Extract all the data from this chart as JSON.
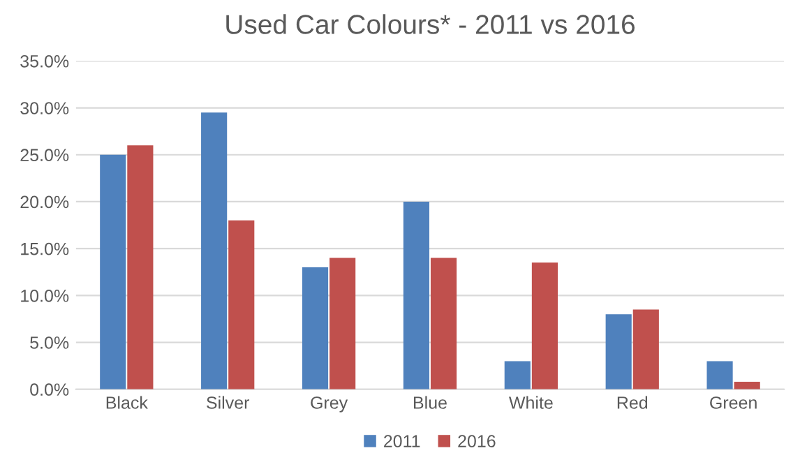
{
  "chart_data": {
    "type": "bar",
    "title": "Used Car Colours* - 2011 vs 2016",
    "categories": [
      "Black",
      "Silver",
      "Grey",
      "Blue",
      "White",
      "Red",
      "Green"
    ],
    "series": [
      {
        "name": "2011",
        "color": "#4f81bd",
        "values": [
          25,
          29.5,
          13,
          20,
          3,
          8,
          3
        ]
      },
      {
        "name": "2016",
        "color": "#c0504d",
        "values": [
          26,
          18,
          14,
          14,
          13.5,
          8.5,
          0.8
        ]
      }
    ],
    "ylim": [
      0,
      35
    ],
    "yticks": [
      {
        "value": 0,
        "label": "0.0%"
      },
      {
        "value": 5,
        "label": "5.0%"
      },
      {
        "value": 10,
        "label": "10.0%"
      },
      {
        "value": 15,
        "label": "15.0%"
      },
      {
        "value": 20,
        "label": "20.0%"
      },
      {
        "value": 25,
        "label": "25.0%"
      },
      {
        "value": 30,
        "label": "30.0%"
      },
      {
        "value": 35,
        "label": "35.0%"
      }
    ],
    "grid": "y",
    "legend": "bottom"
  }
}
